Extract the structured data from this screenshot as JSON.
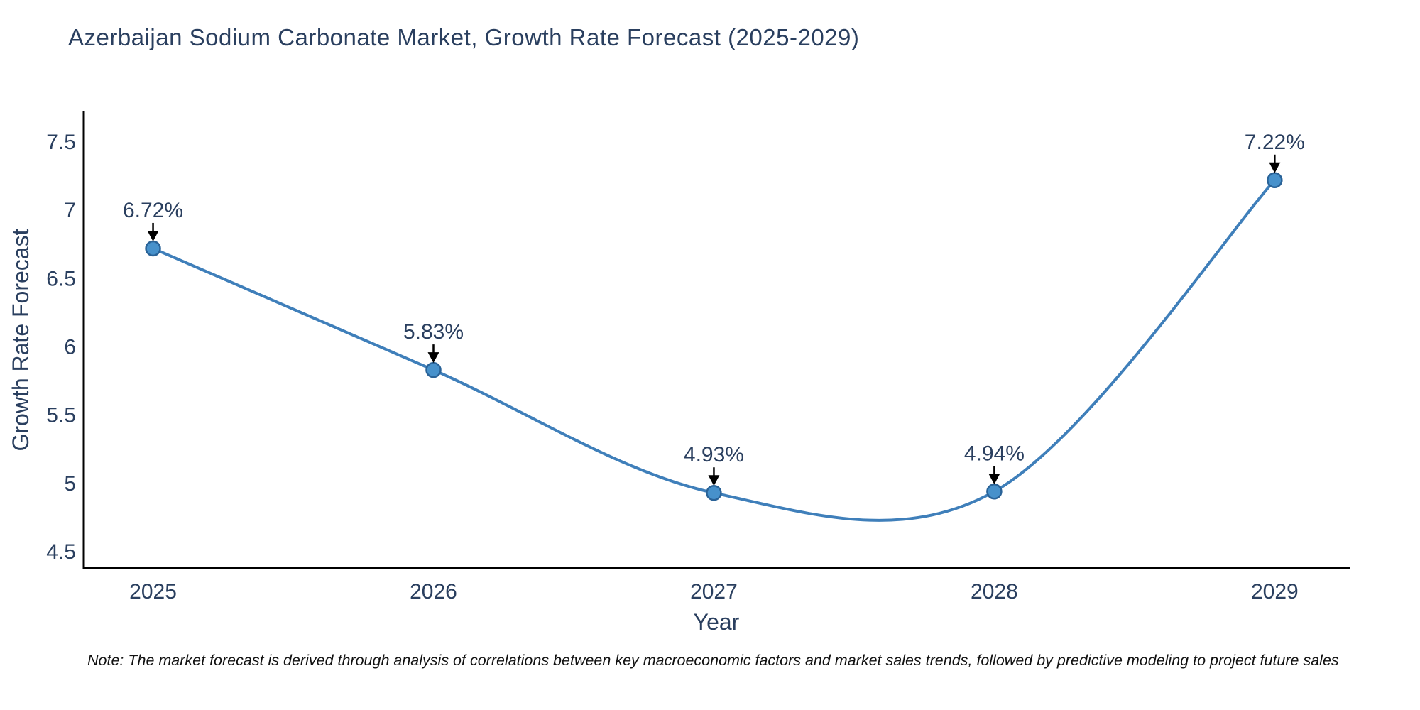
{
  "chart_data": {
    "type": "line",
    "title": "Azerbaijan Sodium Carbonate Market, Growth Rate Forecast (2025-2029)",
    "xlabel": "Year",
    "ylabel": "Growth Rate Forecast",
    "categories": [
      2025,
      2026,
      2027,
      2028,
      2029
    ],
    "values": [
      6.72,
      5.83,
      4.93,
      4.94,
      7.22
    ],
    "point_labels": [
      "6.72%",
      "5.83%",
      "4.93%",
      "4.94%",
      "7.22%"
    ],
    "xtick_labels": [
      "2025",
      "2026",
      "2027",
      "2028",
      "2029"
    ],
    "ytick_values": [
      4.5,
      5,
      5.5,
      6,
      6.5,
      7,
      7.5
    ],
    "ytick_labels": [
      "4.5",
      "5",
      "5.5",
      "6",
      "6.5",
      "7",
      "7.5"
    ],
    "xlim": [
      2024.753,
      2029.265
    ],
    "ylim": [
      4.38,
      7.718
    ],
    "grid": false,
    "legend_visible": false,
    "line_shape": "spline",
    "marker_style": "circle",
    "annotation_arrows": "down",
    "colors": {
      "line": "#3f7fba",
      "marker_fill": "#4791cb",
      "marker_edge": "#2a6398",
      "axis_line": "#000000",
      "tick_text": "#2a3f5f",
      "title_text": "#2a3f5f",
      "annotation_text": "#2a3f5f",
      "arrow": "#000000",
      "background": "#ffffff"
    }
  },
  "note": "Note: The market forecast is derived through analysis of correlations between key macroeconomic factors and market sales trends, followed by predictive modeling to project future sales"
}
